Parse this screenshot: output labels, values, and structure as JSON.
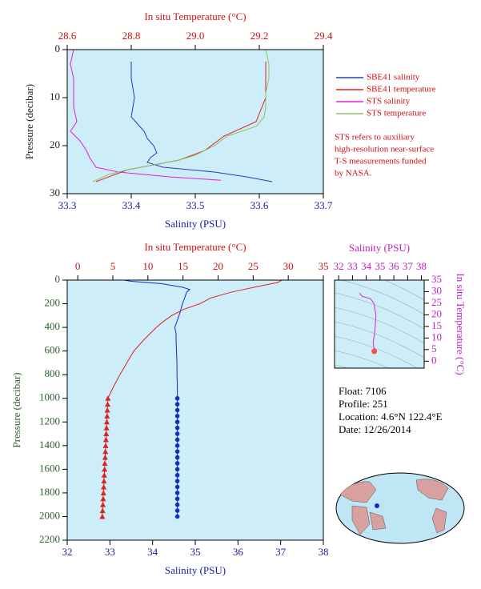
{
  "chart_data": [
    {
      "type": "profile",
      "x_label": "Salinity (PSU)",
      "xlim": [
        33.3,
        33.7
      ],
      "xticks": [
        33.3,
        33.4,
        33.5,
        33.6,
        33.7
      ],
      "x2_label": "In situ Temperature (°C)",
      "x2lim": [
        28.6,
        29.4
      ],
      "x2ticks": [
        28.6,
        28.8,
        {
          "value": 29,
          "label": "29.0"
        },
        29.2,
        29.4
      ],
      "y_label": "Pressure (decibar)",
      "ylim": [
        0,
        30
      ],
      "yticks": [
        0,
        10,
        20,
        30
      ],
      "y_inverted": true,
      "legend": "right",
      "series": [
        {
          "name": "SBE41 salinity",
          "color": "#1f3fc0",
          "axis": "x",
          "y": [
            2.5,
            6,
            10,
            14,
            15.5,
            17,
            18.5,
            20,
            21.5,
            22.5,
            23.5,
            24.5,
            25.5,
            26.5,
            27.5
          ],
          "x": [
            33.4,
            33.4,
            33.405,
            33.4,
            33.41,
            33.42,
            33.425,
            33.435,
            33.44,
            33.43,
            33.425,
            33.45,
            33.53,
            33.58,
            33.62
          ]
        },
        {
          "name": "SBE41 temperature",
          "color": "#e0201e",
          "axis": "x2",
          "y": [
            2.5,
            10,
            15,
            18,
            21,
            23,
            25,
            27.5
          ],
          "x": [
            29.22,
            29.22,
            29.19,
            29.09,
            29.03,
            28.95,
            28.79,
            28.69
          ]
        },
        {
          "name": "STS salinity",
          "color": "#e020e0",
          "axis": "x",
          "y": [
            0,
            3,
            6,
            9,
            12,
            15,
            17,
            19,
            21,
            22.5,
            23.5,
            24.5,
            25.5,
            26.5,
            27.2
          ],
          "x": [
            33.31,
            33.305,
            33.31,
            33.31,
            33.31,
            33.315,
            33.305,
            33.32,
            33.33,
            33.335,
            33.34,
            33.345,
            33.38,
            33.46,
            33.54
          ]
        },
        {
          "name": "STS temperature",
          "color": "#90c060",
          "axis": "x2",
          "y": [
            0,
            3,
            6,
            9,
            12,
            14,
            16,
            18,
            20,
            22,
            23,
            24,
            25,
            26,
            27.5
          ],
          "x": [
            29.22,
            29.23,
            29.23,
            29.22,
            29.22,
            29.215,
            29.19,
            29.1,
            29.06,
            29.0,
            28.95,
            28.87,
            28.79,
            28.73,
            28.68
          ]
        }
      ],
      "annotation": [
        "STS refers to auxiliary",
        "high-resolution near-surface",
        "T-S measurements funded",
        "by NASA."
      ]
    },
    {
      "type": "profile",
      "x_label": "Salinity (PSU)",
      "xlim": [
        32,
        38
      ],
      "xticks": [
        32,
        33,
        34,
        35,
        36,
        37,
        38
      ],
      "x2_label": "In situ Temperature (°C)",
      "x2lim": [
        -1.5,
        35
      ],
      "x2ticks": [
        0,
        5,
        10,
        15,
        20,
        25,
        30,
        35
      ],
      "y_label": "Pressure (decibar)",
      "ylim": [
        0,
        2200
      ],
      "yticks": [
        0,
        200,
        400,
        600,
        800,
        1000,
        1200,
        1400,
        1600,
        1800,
        2000,
        2200
      ],
      "y_inverted": true,
      "series": [
        {
          "color": "#1030c0",
          "axis": "x",
          "y": [
            0,
            10,
            30,
            60,
            80,
            100,
            150,
            200,
            250,
            300,
            350,
            400,
            450,
            500,
            600,
            700,
            800,
            900,
            1000
          ],
          "x": [
            33.33,
            33.5,
            34.2,
            34.7,
            34.87,
            34.8,
            34.75,
            34.7,
            34.66,
            34.62,
            34.57,
            34.52,
            34.55,
            34.55,
            34.56,
            34.57,
            34.57,
            34.58,
            34.58
          ]
        },
        {
          "color": "#1030c0",
          "axis": "x",
          "marker": "circle",
          "y": [
            1000,
            1050,
            1100,
            1150,
            1200,
            1250,
            1300,
            1350,
            1400,
            1450,
            1500,
            1550,
            1600,
            1650,
            1700,
            1750,
            1800,
            1850,
            1900,
            1950,
            2000
          ],
          "x": [
            34.58,
            34.58,
            34.58,
            34.58,
            34.58,
            34.58,
            34.58,
            34.58,
            34.58,
            34.58,
            34.58,
            34.58,
            34.58,
            34.58,
            34.58,
            34.58,
            34.58,
            34.58,
            34.58,
            34.58,
            34.58
          ]
        },
        {
          "color": "#e0201e",
          "axis": "x2",
          "y": [
            0,
            20,
            50,
            100,
            150,
            200,
            250,
            300,
            350,
            400,
            500,
            600,
            700,
            800,
            900,
            1000
          ],
          "x": [
            29.1,
            28.5,
            26,
            22,
            19,
            17.4,
            15,
            13.4,
            12.2,
            11.2,
            9.5,
            8,
            7,
            6,
            5.1,
            4.3
          ]
        },
        {
          "color": "#e0201e",
          "axis": "x2",
          "marker": "triangle",
          "y": [
            1000,
            1050,
            1100,
            1150,
            1200,
            1250,
            1300,
            1350,
            1400,
            1450,
            1500,
            1550,
            1600,
            1650,
            1700,
            1750,
            1800,
            1850,
            1900,
            1950,
            2000
          ],
          "x": [
            4.3,
            4.26,
            4.22,
            4.18,
            4.14,
            4.1,
            4.06,
            4.02,
            3.98,
            3.94,
            3.9,
            3.86,
            3.82,
            3.78,
            3.74,
            3.7,
            3.66,
            3.62,
            3.58,
            3.54,
            3.5
          ]
        }
      ]
    },
    {
      "type": "ts",
      "x_label": "Salinity (PSU)",
      "xlim": [
        31.7,
        38.2
      ],
      "xticks": [
        32,
        33,
        34,
        35,
        36,
        37,
        38
      ],
      "y_label": "In situ Temperature (°C)",
      "ylim": [
        -3,
        35
      ],
      "yticks": [
        0,
        5,
        10,
        15,
        20,
        25,
        30,
        35
      ],
      "series": [
        {
          "color": "#e020e0",
          "end_marker_color": "#f05050",
          "x": [
            33.5,
            33.7,
            34.3,
            34.55,
            34.7,
            34.65,
            34.6,
            34.55,
            34.5,
            34.55,
            34.6,
            34.58
          ],
          "y": [
            29.5,
            28,
            27,
            25,
            20,
            15,
            12,
            10,
            8,
            6,
            5,
            4.3
          ]
        }
      ]
    }
  ],
  "float_info": [
    "Float:  7106",
    "Profile:  251",
    "Location:  4.6°N  122.4°E",
    "Date:  12/26/2014"
  ]
}
